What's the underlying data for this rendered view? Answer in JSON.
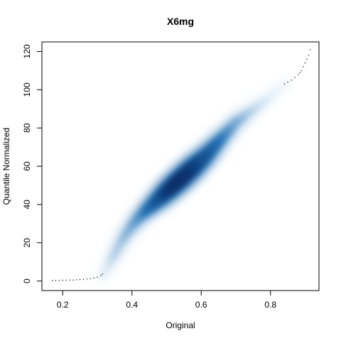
{
  "chart_data": {
    "type": "scatter",
    "style": "smoothed-density-scatter",
    "title": "X6mg",
    "xlabel": "Original",
    "ylabel": "Quantile Normalized",
    "xlim": [
      0.14,
      0.94
    ],
    "ylim": [
      -5,
      125
    ],
    "x_ticks": [
      0.2,
      0.4,
      0.6,
      0.8
    ],
    "x_tick_labels": [
      "0.2",
      "0.4",
      "0.6",
      "0.8"
    ],
    "y_ticks": [
      0,
      20,
      40,
      60,
      80,
      100,
      120
    ],
    "y_tick_labels": [
      "0",
      "20",
      "40",
      "60",
      "80",
      "100",
      "120"
    ],
    "grid": false,
    "legend": "none",
    "colors": {
      "density_low": "#f7fbff",
      "density_high": "#08306b",
      "outlier_points": "#000000",
      "frame": "#000000"
    },
    "curve": {
      "x": [
        0.17,
        0.2,
        0.23,
        0.26,
        0.29,
        0.31,
        0.32,
        0.33,
        0.35,
        0.37,
        0.4,
        0.43,
        0.46,
        0.49,
        0.52,
        0.55,
        0.58,
        0.61,
        0.64,
        0.67,
        0.7,
        0.73,
        0.76,
        0.79,
        0.82,
        0.85,
        0.88,
        0.9,
        0.91,
        0.92
      ],
      "y": [
        0.3,
        0.3,
        0.5,
        0.8,
        1.5,
        2.5,
        4,
        8,
        14,
        21,
        29,
        35,
        40,
        45,
        50,
        55,
        60,
        65,
        71,
        77,
        83,
        87,
        91,
        95,
        100,
        104,
        109,
        115,
        118,
        121
      ]
    },
    "density_band": {
      "x": [
        0.31,
        0.33,
        0.35,
        0.37,
        0.39,
        0.41,
        0.43,
        0.45,
        0.47,
        0.49,
        0.51,
        0.53,
        0.55,
        0.57,
        0.59,
        0.61,
        0.63,
        0.65,
        0.67,
        0.69,
        0.71,
        0.73,
        0.75,
        0.77,
        0.79,
        0.81,
        0.83,
        0.85
      ],
      "density": [
        0.05,
        0.12,
        0.2,
        0.25,
        0.3,
        0.36,
        0.44,
        0.55,
        0.67,
        0.8,
        0.93,
        1.0,
        1.0,
        0.96,
        0.87,
        0.76,
        0.65,
        0.54,
        0.44,
        0.36,
        0.29,
        0.22,
        0.16,
        0.12,
        0.08,
        0.05,
        0.03,
        0.02
      ]
    },
    "outliers": {
      "x": [
        0.17,
        0.18,
        0.19,
        0.2,
        0.21,
        0.22,
        0.23,
        0.24,
        0.25,
        0.26,
        0.27,
        0.28,
        0.29,
        0.3,
        0.31,
        0.315,
        0.84,
        0.85,
        0.86,
        0.87,
        0.88,
        0.885,
        0.89,
        0.895,
        0.9,
        0.905,
        0.91,
        0.915
      ],
      "y": [
        0.3,
        0.3,
        0.3,
        0.4,
        0.4,
        0.5,
        0.5,
        0.6,
        0.7,
        0.8,
        1.0,
        1.2,
        1.6,
        2.0,
        2.8,
        3.6,
        103,
        104,
        105,
        106.5,
        108,
        109,
        110,
        112,
        114,
        116,
        118,
        121
      ]
    }
  }
}
